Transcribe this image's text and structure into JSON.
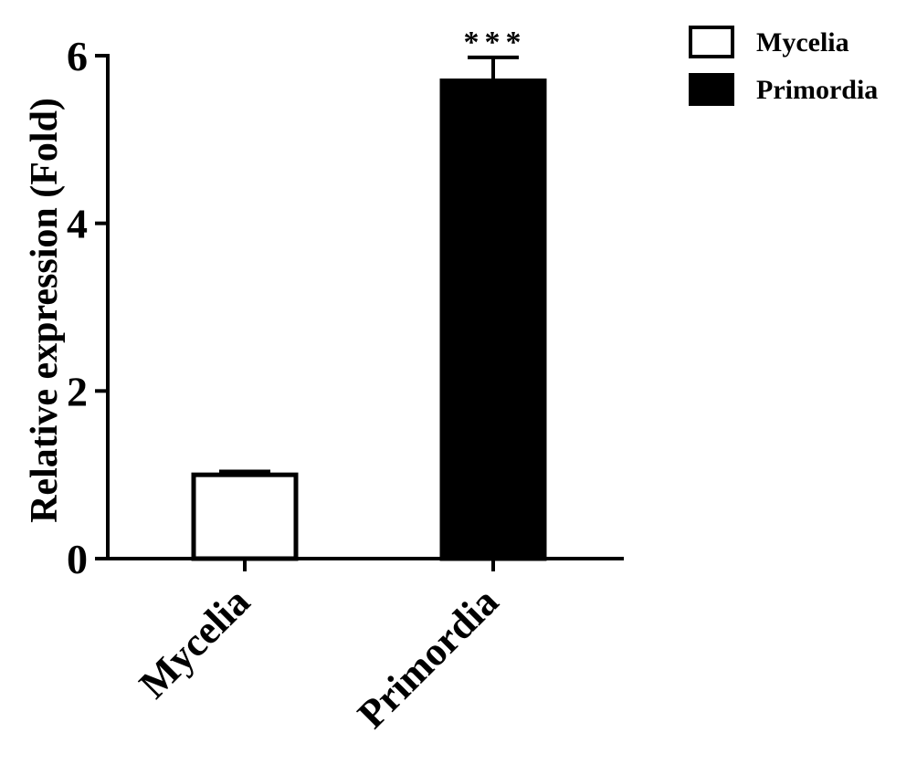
{
  "chart_data": {
    "type": "bar",
    "categories": [
      "Mycelia",
      "Primordia"
    ],
    "values": [
      1.0,
      5.7
    ],
    "errors": [
      0.04,
      0.28
    ],
    "fills": [
      "#ffffff",
      "#000000"
    ],
    "xlabel": "",
    "ylabel": "Relative expression (Fold)",
    "ylim": [
      0,
      6
    ],
    "yticks": [
      0,
      2,
      4,
      6
    ],
    "ytick_labels": [
      "0",
      "2",
      "4",
      "6"
    ],
    "significance": [
      "",
      "***"
    ],
    "legend": {
      "position": "top-right",
      "entries": [
        {
          "label": "Mycelia",
          "fill": "#ffffff"
        },
        {
          "label": "Primordia",
          "fill": "#000000"
        }
      ]
    },
    "grid": false
  }
}
